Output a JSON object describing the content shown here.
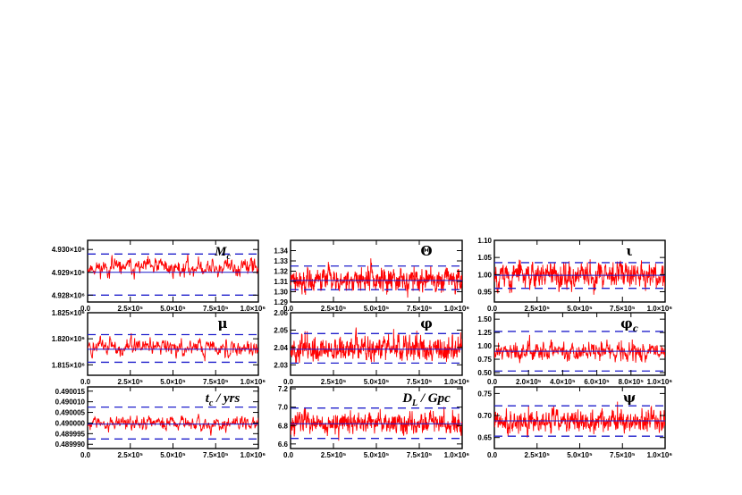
{
  "chart_data": [
    {
      "type": "line",
      "title": "M",
      "title_sub": "c",
      "title_style": "italic",
      "x_ticks": [
        "0.0",
        "2.5×10⁵",
        "5.0×10⁵",
        "7.5×10⁵",
        "1.0×10⁶"
      ],
      "y_ticks": [
        {
          "value": 4928000,
          "label": "4.928×10⁶"
        },
        {
          "value": 4929000,
          "label": "4.929×10⁶"
        },
        {
          "value": 4930000,
          "label": "4.930×10⁶"
        }
      ],
      "xlim": [
        0,
        1000000
      ],
      "ylim": [
        4927700,
        4930400
      ],
      "series": {
        "points": 400,
        "mean": 4929200,
        "noise": 260,
        "seed": 11
      },
      "mean_line": 4929000,
      "bounds": [
        4928000,
        4929800
      ]
    },
    {
      "type": "line",
      "title": "Θ",
      "title_style": "greek",
      "x_ticks": [
        "0.0",
        "2.5×10⁵",
        "5.0×10⁵",
        "7.5×10⁵",
        "1.0×10⁶"
      ],
      "y_ticks": [
        {
          "value": 1.29,
          "label": "1.29"
        },
        {
          "value": 1.3,
          "label": "1.30"
        },
        {
          "value": 1.31,
          "label": "1.31"
        },
        {
          "value": 1.32,
          "label": "1.32"
        },
        {
          "value": 1.33,
          "label": "1.33"
        },
        {
          "value": 1.34,
          "label": "1.34"
        }
      ],
      "xlim": [
        0,
        1000000
      ],
      "ylim": [
        1.29,
        1.35
      ],
      "series": {
        "points": 700,
        "mean": 1.312,
        "noise": 0.0075,
        "seed": 22
      },
      "mean_line": 1.311,
      "bounds": [
        1.302,
        1.325
      ]
    },
    {
      "type": "line",
      "title": "ι",
      "title_style": "greek",
      "x_ticks": [
        "0.0",
        "2.5×10⁵",
        "5.0×10⁵",
        "7.5×10⁵",
        "1.0×10⁶"
      ],
      "y_ticks": [
        {
          "value": 0.95,
          "label": "0.95"
        },
        {
          "value": 1.0,
          "label": "1.00"
        },
        {
          "value": 1.05,
          "label": "1.05"
        },
        {
          "value": 1.1,
          "label": "1.10"
        }
      ],
      "xlim": [
        0,
        1000000
      ],
      "ylim": [
        0.92,
        1.1
      ],
      "series": {
        "points": 700,
        "mean": 0.998,
        "noise": 0.024,
        "seed": 33
      },
      "mean_line": 0.998,
      "bounds": [
        0.96,
        1.035
      ]
    },
    {
      "type": "line",
      "title": "μ",
      "title_style": "greek",
      "x_ticks": [
        "0.0",
        "2.5×10⁵",
        "5.0×10⁵",
        "7.5×10⁵",
        "1.0×10⁶"
      ],
      "y_ticks": [
        {
          "value": 1815000,
          "label": "1.815×10⁶"
        },
        {
          "value": 1820000,
          "label": "1.820×10⁶"
        },
        {
          "value": 1825000,
          "label": "1.825×10⁶"
        }
      ],
      "xlim": [
        0,
        1000000
      ],
      "ylim": [
        1813000,
        1825000
      ],
      "series": {
        "points": 400,
        "mean": 1818300,
        "noise": 1100,
        "seed": 44
      },
      "mean_line": 1818000,
      "bounds": [
        1815500,
        1820800
      ]
    },
    {
      "type": "line",
      "title": "φ",
      "title_style": "greek",
      "x_ticks": [
        "0.0",
        "2.5×10⁵",
        "5.0×10⁵",
        "7.5×10⁵",
        "1.0×10⁶"
      ],
      "y_ticks": [
        {
          "value": 2.03,
          "label": "2.03"
        },
        {
          "value": 2.04,
          "label": "2.04"
        },
        {
          "value": 2.05,
          "label": "2.05"
        },
        {
          "value": 2.06,
          "label": "2.06"
        }
      ],
      "xlim": [
        0,
        1000000
      ],
      "ylim": [
        2.024,
        2.06
      ],
      "series": {
        "points": 700,
        "mean": 2.039,
        "noise": 0.0045,
        "seed": 55
      },
      "mean_line": 2.039,
      "bounds": [
        2.031,
        2.048
      ]
    },
    {
      "type": "line",
      "title": "φ",
      "title_sub": "c",
      "title_style": "greek",
      "x_ticks": [
        "0.0",
        "2.0×10⁵",
        "4.0×10⁵",
        "6.0×10⁵",
        "8.0×10⁵",
        "1.0×10⁶"
      ],
      "y_ticks": [
        {
          "value": 0.5,
          "label": "0.50"
        },
        {
          "value": 0.75,
          "label": "0.75"
        },
        {
          "value": 1.0,
          "label": "1.00"
        },
        {
          "value": 1.25,
          "label": "1.25"
        },
        {
          "value": 1.5,
          "label": "1.50"
        }
      ],
      "xlim": [
        0,
        1000000
      ],
      "ylim": [
        0.45,
        1.62
      ],
      "series": {
        "points": 500,
        "mean": 0.9,
        "noise": 0.11,
        "seed": 66
      },
      "mean_line": 0.9,
      "bounds": [
        0.53,
        1.27
      ]
    },
    {
      "type": "line",
      "title": "t",
      "title_sub": "c",
      "title_suffix": " / yrs",
      "title_style": "italic",
      "x_ticks": [
        "0.0",
        "2.5×10⁵",
        "5.0×10⁵",
        "7.5×10⁵",
        "1.0×10⁶"
      ],
      "y_ticks": [
        {
          "value": 0.48999,
          "label": "0.489990"
        },
        {
          "value": 0.489995,
          "label": "0.489995"
        },
        {
          "value": 0.49,
          "label": "0.490000"
        },
        {
          "value": 0.490005,
          "label": "0.490005"
        },
        {
          "value": 0.49001,
          "label": "0.490010"
        },
        {
          "value": 0.490015,
          "label": "0.490015"
        }
      ],
      "xlim": [
        0,
        1000000
      ],
      "ylim": [
        0.489988,
        0.490017
      ],
      "series": {
        "points": 400,
        "mean": 0.4899995,
        "noise": 2.2e-06,
        "seed": 77
      },
      "mean_line": 0.4899995,
      "bounds": [
        0.4899925,
        0.4900075
      ]
    },
    {
      "type": "line",
      "title": "D",
      "title_sub": "L",
      "title_suffix": " / Gpc",
      "title_style": "italic",
      "x_ticks": [
        "0.0",
        "2.5×10⁵",
        "5.0×10⁵",
        "7.5×10⁵",
        "1.0×10⁶"
      ],
      "y_ticks": [
        {
          "value": 6.6,
          "label": "6.6"
        },
        {
          "value": 6.8,
          "label": "6.8"
        },
        {
          "value": 7.0,
          "label": "7.0"
        },
        {
          "value": 7.2,
          "label": "7.2"
        }
      ],
      "xlim": [
        0,
        1000000
      ],
      "ylim": [
        6.55,
        7.22
      ],
      "series": {
        "points": 700,
        "mean": 6.82,
        "noise": 0.075,
        "seed": 88
      },
      "mean_line": 6.82,
      "bounds": [
        6.66,
        6.99
      ]
    },
    {
      "type": "line",
      "title": "ψ",
      "title_style": "greek",
      "x_ticks": [
        "0.0",
        "2.5×10⁵",
        "5.0×10⁵",
        "7.5×10⁵",
        "1.0×10⁶"
      ],
      "y_ticks": [
        {
          "value": 0.65,
          "label": "0.65"
        },
        {
          "value": 0.7,
          "label": "0.70"
        },
        {
          "value": 0.75,
          "label": "0.75"
        }
      ],
      "xlim": [
        0,
        1000000
      ],
      "ylim": [
        0.625,
        0.765
      ],
      "series": {
        "points": 700,
        "mean": 0.688,
        "noise": 0.017,
        "seed": 99
      },
      "mean_line": 0.688,
      "bounds": [
        0.653,
        0.722
      ]
    }
  ]
}
